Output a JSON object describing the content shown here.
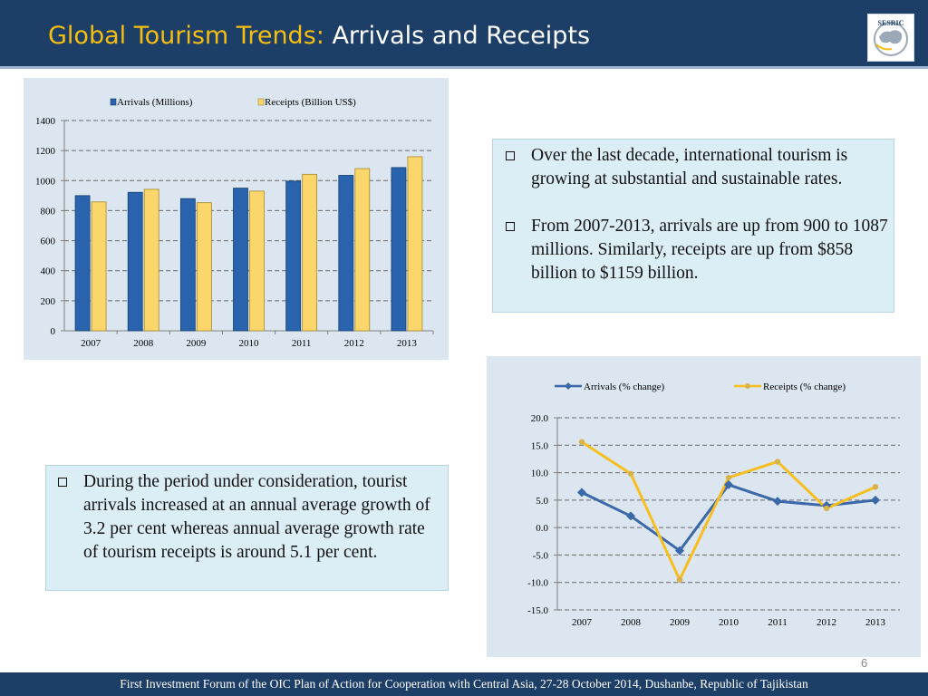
{
  "header": {
    "title_highlight": "Global Tourism Trends:",
    "title_rest": " Arrivals and Receipts",
    "logo_text": "SESRIC",
    "colors": {
      "background": "#1d3e66",
      "highlight": "#f6be10"
    }
  },
  "textboxes": {
    "top": {
      "bullets": [
        "Over the last decade, international tourism is growing at substantial and sustainable rates.",
        "From 2007-2013, arrivals are up from  900 to 1087 millions. Similarly, receipts are up from $858 billion to $1159 billion."
      ]
    },
    "bottom": {
      "bullets": [
        "During the period under consideration, tourist arrivals increased at an annual average growth of 3.2 per cent whereas annual average growth rate of tourism receipts is around 5.1 per cent."
      ]
    }
  },
  "page_number": "6",
  "footer": {
    "text": "First Investment Forum of the OIC Plan of Action for Cooperation with Central Asia, 27-28 October 2014, Dushanbe, Republic of Tajikistan"
  },
  "chart_data": [
    {
      "type": "bar",
      "categories": [
        "2007",
        "2008",
        "2009",
        "2010",
        "2011",
        "2012",
        "2013"
      ],
      "series": [
        {
          "name": "Arrivals (Millions)",
          "values": [
            900,
            922,
            880,
            950,
            997,
            1035,
            1087
          ],
          "color": "#2a63ad"
        },
        {
          "name": "Receipts (Billion US$)",
          "values": [
            858,
            942,
            853,
            930,
            1042,
            1080,
            1159
          ],
          "color": "#fbd66a"
        }
      ],
      "ylim": [
        0,
        1400
      ],
      "yticks": [
        "0",
        "200",
        "400",
        "600",
        "800",
        "1000",
        "1200",
        "1400"
      ],
      "grid": true,
      "legend": "top"
    },
    {
      "type": "line",
      "categories": [
        "2007",
        "2008",
        "2009",
        "2010",
        "2011",
        "2012",
        "2013"
      ],
      "series": [
        {
          "name": "Arrivals (% change)",
          "values": [
            6.4,
            2.1,
            -4.2,
            7.8,
            4.8,
            4.0,
            5.0
          ],
          "color": "#3a68a8"
        },
        {
          "name": "Receipts (% change)",
          "values": [
            15.6,
            9.8,
            -9.5,
            9.1,
            12.0,
            3.5,
            7.4
          ],
          "color": "#f6be1e"
        }
      ],
      "ylim": [
        -15,
        20
      ],
      "yticks": [
        "20.0",
        "15.0",
        "10.0",
        "5.0",
        "0.0",
        "-5.0",
        "-10.0",
        "-15.0"
      ],
      "grid": true,
      "legend": "top"
    }
  ]
}
